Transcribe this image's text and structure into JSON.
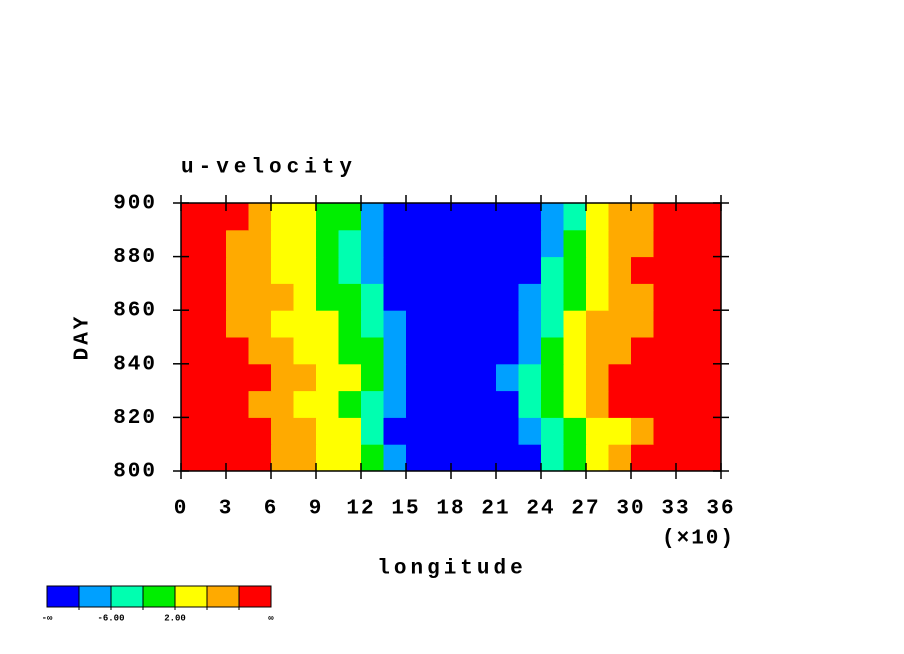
{
  "chart_data": {
    "type": "contour",
    "title": "u-velocity",
    "x_label": "longitude",
    "x_multiplier": "(×10)",
    "y_label": "DAY",
    "xlim": [
      0,
      36
    ],
    "xticks": [
      0,
      3,
      6,
      9,
      12,
      15,
      18,
      21,
      24,
      27,
      30,
      33,
      36
    ],
    "ylim": [
      800,
      900
    ],
    "yticks": [
      800,
      820,
      840,
      860,
      880,
      900
    ],
    "x": [
      0.75,
      2.25,
      3.75,
      5.25,
      6.75,
      8.25,
      9.75,
      11.25,
      12.75,
      14.25,
      15.75,
      17.25,
      18.75,
      20.25,
      21.75,
      23.25,
      24.75,
      26.25,
      27.75,
      29.25,
      30.75,
      32.25,
      33.75,
      35.25
    ],
    "y": [
      805,
      815,
      825,
      835,
      845,
      855,
      865,
      875,
      885,
      895
    ],
    "z": [
      [
        12,
        12,
        11,
        12,
        8,
        7,
        5,
        3,
        1,
        -8,
        -12,
        -13,
        -13,
        -12,
        -12,
        -11,
        -4,
        1,
        3,
        6,
        11,
        12,
        12,
        12
      ],
      [
        12,
        11,
        12,
        10,
        7,
        6,
        4,
        2,
        -3,
        -11,
        -12,
        -13,
        -13,
        -13,
        -12,
        -8,
        -3,
        0,
        2,
        5,
        9,
        11,
        12,
        11
      ],
      [
        12,
        12,
        11,
        9,
        7,
        5,
        3,
        1,
        -4,
        -9,
        -12,
        -12,
        -13,
        -12,
        -11,
        -5,
        -1,
        2,
        6,
        10,
        12,
        11,
        12,
        12
      ],
      [
        12,
        12,
        12,
        10,
        8,
        6,
        4,
        2,
        -2,
        -8,
        -11,
        -12,
        -13,
        -12,
        -10,
        -4,
        0,
        4,
        8,
        11,
        12,
        12,
        12,
        11
      ],
      [
        12,
        11,
        10,
        8,
        6,
        4,
        3,
        1,
        -2,
        -7,
        -11,
        -13,
        -13,
        -12,
        -11,
        -8,
        -2,
        3,
        7,
        9,
        10,
        11,
        12,
        12
      ],
      [
        11,
        10,
        9,
        7,
        5,
        4,
        2,
        0,
        -3,
        -9,
        -12,
        -13,
        -13,
        -13,
        -12,
        -9,
        -3,
        2,
        6,
        8,
        9,
        10,
        11,
        11
      ],
      [
        12,
        10,
        9,
        7,
        6,
        3,
        1,
        -1,
        -6,
        -11,
        -12,
        -13,
        -13,
        -13,
        -12,
        -10,
        -5,
        0,
        4,
        7,
        9,
        11,
        12,
        12
      ],
      [
        12,
        12,
        9,
        6,
        5,
        3,
        0,
        -3,
        -9,
        -12,
        -13,
        -13,
        -13,
        -13,
        -12,
        -11,
        -4,
        1,
        5,
        8,
        10,
        11,
        12,
        12
      ],
      [
        12,
        11,
        8,
        6,
        4,
        2,
        -1,
        -4,
        -10,
        -12,
        -13,
        -13,
        -13,
        -13,
        -12,
        -12,
        -8,
        -1,
        3,
        7,
        9,
        10,
        11,
        12
      ],
      [
        12,
        12,
        10,
        7,
        5,
        3,
        1,
        -2,
        -9,
        -12,
        -13,
        -13,
        -13,
        -13,
        -13,
        -12,
        -10,
        -3,
        2,
        6,
        9,
        11,
        12,
        12
      ]
    ],
    "levels": [
      -10,
      -6,
      -2,
      2,
      6,
      10
    ],
    "level_labels": [
      null,
      "-6.00",
      null,
      "2.00",
      null,
      null
    ],
    "colorbar_ends": [
      "-∞",
      "∞"
    ],
    "colors": [
      "#0000ff",
      "#00a0ff",
      "#00ffb0",
      "#00ee00",
      "#ffff00",
      "#ffaa00",
      "#ff0000"
    ]
  }
}
